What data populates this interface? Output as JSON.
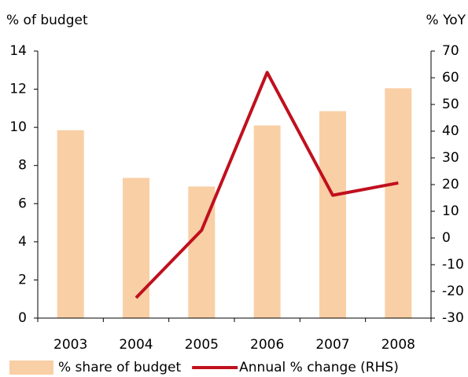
{
  "chart_data": {
    "type": "bar_line",
    "y_label": "% of budget",
    "y2_label": "% YoY",
    "categories": [
      "2003",
      "2004",
      "2005",
      "2006",
      "2007",
      "2008"
    ],
    "series": [
      {
        "name": "% share of budget",
        "type": "bar",
        "color": "#f9cfa5",
        "axis": "y",
        "values": [
          9.85,
          7.35,
          6.9,
          10.1,
          10.85,
          12.05
        ]
      },
      {
        "name": "Annual % change (RHS)",
        "type": "line",
        "color": "#c0101e",
        "axis": "y2",
        "values": [
          null,
          -22.4,
          2.9,
          62,
          16,
          20.6
        ]
      }
    ],
    "ylim": [
      0,
      14
    ],
    "yticks": [
      0,
      2,
      4,
      6,
      8,
      10,
      12,
      14
    ],
    "y2lim": [
      -30,
      70
    ],
    "y2ticks": [
      -30,
      -20,
      -10,
      0,
      10,
      20,
      30,
      40,
      50,
      60,
      70
    ],
    "legend": "bottom"
  }
}
